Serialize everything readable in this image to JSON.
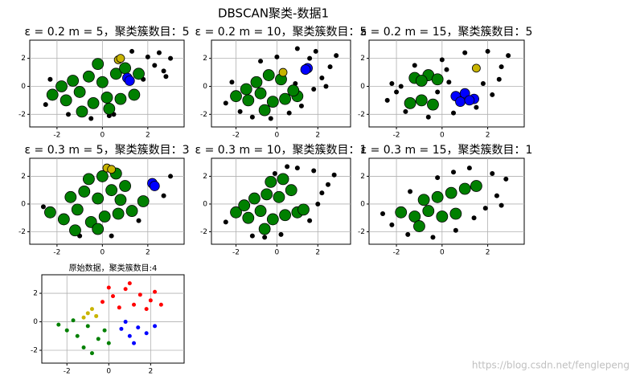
{
  "title": "DBSCAN聚类-数据1",
  "watermark": "https://blog.csdn.net/fenglepeng",
  "chart_data": [
    {
      "type": "scatter",
      "title": "ε = 0.2  m = 5，聚类簇数目：5",
      "xlim": [
        -3.2,
        3.6
      ],
      "ylim": [
        -2.9,
        3.3
      ],
      "xticks": [
        -2,
        0,
        2
      ],
      "yticks": [
        -2,
        0,
        2
      ],
      "grid": true,
      "series": [
        {
          "color": "#000000",
          "marker_size": 3,
          "x": [
            -2.5,
            -1.5,
            -0.5,
            0.3,
            1.8,
            2.3,
            2.7,
            3.0,
            2.5,
            2.0,
            1.3,
            -2.3,
            0.5,
            2.8
          ],
          "y": [
            -1.3,
            -2.0,
            -2.3,
            -2.1,
            0.5,
            1.5,
            1.1,
            2.0,
            2.4,
            2.1,
            2.5,
            0.5,
            -2.0,
            0.7
          ]
        },
        {
          "color": "#008000",
          "marker_size": 7,
          "x": [
            -2.2,
            -1.6,
            -1.0,
            -0.4,
            0.2,
            0.8,
            1.4,
            -1.3,
            -0.6,
            0.0,
            0.6,
            -1.8,
            -0.9,
            0.3,
            1.0,
            1.6,
            -0.2
          ],
          "y": [
            -0.6,
            -1.0,
            -0.4,
            -1.2,
            -0.8,
            -0.9,
            -0.6,
            0.4,
            0.7,
            0.3,
            0.9,
            0.0,
            -1.8,
            -1.6,
            1.3,
            0.9,
            1.6
          ]
        },
        {
          "color": "#0000ff",
          "marker_size": 6,
          "x": [
            1.1,
            1.2
          ],
          "y": [
            0.6,
            0.4
          ]
        },
        {
          "color": "#c8b400",
          "marker_size": 5,
          "x": [
            0.7,
            0.8
          ],
          "y": [
            1.9,
            2.0
          ]
        }
      ]
    },
    {
      "type": "scatter",
      "title": "ε = 0.2  m = 10，聚类簇数目：5",
      "xlim": [
        -3.2,
        3.6
      ],
      "ylim": [
        -2.9,
        3.3
      ],
      "xticks": [
        -2,
        0,
        2
      ],
      "yticks": [
        -2,
        0,
        2
      ],
      "grid": true,
      "series": [
        {
          "color": "#000000",
          "marker_size": 3,
          "x": [
            -2.5,
            -2.2,
            -1.8,
            -1.2,
            -0.3,
            0.6,
            1.2,
            1.8,
            2.2,
            2.6,
            2.9,
            1.9,
            1.0,
            0.0,
            -0.8,
            2.4,
            0.9,
            1.6
          ],
          "y": [
            -1.2,
            0.3,
            -1.8,
            -2.2,
            -2.3,
            -1.9,
            -1.4,
            -0.2,
            0.6,
            1.4,
            2.2,
            2.5,
            2.7,
            2.1,
            1.8,
            0.0,
            0.2,
            2.0
          ]
        },
        {
          "color": "#008000",
          "marker_size": 7,
          "x": [
            -2.0,
            -1.4,
            -0.8,
            -0.2,
            0.4,
            1.0,
            -1.0,
            -0.4,
            0.2,
            -1.5,
            0.8,
            -0.6
          ],
          "y": [
            -0.7,
            -1.0,
            -0.5,
            -1.1,
            -0.9,
            -0.7,
            0.3,
            0.8,
            0.5,
            -0.2,
            -0.3,
            -1.7
          ]
        },
        {
          "color": "#0000ff",
          "marker_size": 6,
          "x": [
            1.5,
            1.4
          ],
          "y": [
            1.3,
            1.2
          ]
        },
        {
          "color": "#c8b400",
          "marker_size": 5,
          "x": [
            0.3
          ],
          "y": [
            1.0
          ]
        }
      ]
    },
    {
      "type": "scatter",
      "title": "ε = 0.2  m = 15，聚类簇数目：5",
      "xlim": [
        -3.2,
        3.6
      ],
      "ylim": [
        -2.9,
        3.3
      ],
      "xticks": [
        -2,
        0,
        2
      ],
      "yticks": [
        -2,
        0,
        2
      ],
      "grid": true,
      "series": [
        {
          "color": "#000000",
          "marker_size": 3,
          "x": [
            -2.4,
            -2.0,
            -1.6,
            -2.2,
            -0.2,
            0.3,
            1.8,
            2.2,
            2.6,
            2.9,
            2.0,
            1.0,
            0.0,
            -1.2,
            -0.6,
            0.5,
            1.5,
            2.5,
            -1.8,
            0.2
          ],
          "y": [
            -1.0,
            -0.4,
            -1.8,
            0.2,
            -0.4,
            0.3,
            0.2,
            -0.6,
            1.4,
            2.2,
            2.5,
            2.4,
            1.9,
            1.5,
            -2.2,
            -1.9,
            -1.5,
            0.5,
            0.0,
            1.2
          ]
        },
        {
          "color": "#008000",
          "marker_size": 7,
          "x": [
            -1.2,
            -0.6,
            -0.2,
            -0.9,
            -1.4,
            -0.9,
            -0.4
          ],
          "y": [
            0.6,
            0.8,
            0.5,
            0.4,
            -1.2,
            -1.0,
            -1.3
          ]
        },
        {
          "color": "#0000ff",
          "marker_size": 6,
          "x": [
            0.6,
            1.0,
            1.4,
            0.8,
            1.2
          ],
          "y": [
            -0.7,
            -0.5,
            -0.9,
            -1.1,
            -1.0
          ]
        },
        {
          "color": "#c8b400",
          "marker_size": 5,
          "x": [
            1.5
          ],
          "y": [
            1.3
          ]
        }
      ]
    },
    {
      "type": "scatter",
      "title": "ε = 0.3  m = 5，聚类簇数目：3",
      "xlim": [
        -3.2,
        3.6
      ],
      "ylim": [
        -2.9,
        3.3
      ],
      "xticks": [
        -2,
        0,
        2
      ],
      "yticks": [
        -2,
        0,
        2
      ],
      "grid": true,
      "series": [
        {
          "color": "#000000",
          "marker_size": 3,
          "x": [
            -1.0,
            0.4,
            1.6,
            2.7,
            3.0,
            -2.6
          ],
          "y": [
            -2.3,
            -2.3,
            -1.2,
            0.6,
            2.0,
            -0.2
          ]
        },
        {
          "color": "#008000",
          "marker_size": 7,
          "x": [
            -2.3,
            -1.7,
            -1.1,
            -0.5,
            0.1,
            0.7,
            1.3,
            1.8,
            -1.4,
            -0.8,
            -0.2,
            0.4,
            1.0,
            -0.6,
            0.0,
            0.6,
            -1.2,
            -0.2,
            0.8
          ],
          "y": [
            -0.6,
            -1.1,
            -0.4,
            -1.3,
            -0.9,
            -0.7,
            -0.5,
            0.2,
            0.5,
            0.9,
            0.4,
            1.0,
            1.3,
            1.8,
            2.0,
            2.2,
            -1.9,
            -1.8,
            0.3
          ]
        },
        {
          "color": "#0000ff",
          "marker_size": 6,
          "x": [
            2.2,
            2.3
          ],
          "y": [
            1.5,
            1.3
          ]
        },
        {
          "color": "#c8b400",
          "marker_size": 5,
          "x": [
            0.2,
            0.4
          ],
          "y": [
            2.6,
            2.5
          ]
        }
      ]
    },
    {
      "type": "scatter",
      "title": "ε = 0.3  m = 10，聚类簇数目：1",
      "xlim": [
        -3.2,
        3.6
      ],
      "ylim": [
        -2.9,
        3.3
      ],
      "xticks": [
        -2,
        0,
        2
      ],
      "yticks": [
        -2,
        0,
        2
      ],
      "grid": true,
      "series": [
        {
          "color": "#000000",
          "marker_size": 3,
          "x": [
            -2.5,
            -1.2,
            0.2,
            1.6,
            2.0,
            2.5,
            2.8,
            1.8,
            1.0,
            0.5,
            -0.1,
            -0.6,
            2.2
          ],
          "y": [
            -1.3,
            -2.3,
            -2.2,
            -1.2,
            0.0,
            1.4,
            2.1,
            2.4,
            2.6,
            2.7,
            2.2,
            -2.4,
            0.8
          ]
        },
        {
          "color": "#008000",
          "marker_size": 7,
          "x": [
            -2.0,
            -1.4,
            -0.8,
            -0.2,
            0.4,
            1.0,
            -1.1,
            -0.5,
            0.1,
            0.7,
            -0.3,
            0.3,
            1.3,
            -1.6,
            -0.6
          ],
          "y": [
            -0.6,
            -1.0,
            -0.5,
            -1.1,
            -0.8,
            -0.6,
            0.4,
            0.7,
            0.5,
            1.0,
            1.6,
            1.8,
            -0.4,
            -0.1,
            -1.8
          ]
        }
      ]
    },
    {
      "type": "scatter",
      "title": "ε = 0.3  m = 15，聚类簇数目：1",
      "xlim": [
        -3.2,
        3.6
      ],
      "ylim": [
        -2.9,
        3.3
      ],
      "xticks": [
        -2,
        0,
        2
      ],
      "yticks": [
        -2,
        0,
        2
      ],
      "grid": true,
      "series": [
        {
          "color": "#000000",
          "marker_size": 3,
          "x": [
            -2.6,
            -2.2,
            -1.5,
            -0.4,
            0.6,
            1.4,
            1.9,
            2.4,
            2.8,
            2.2,
            1.2,
            0.5,
            -0.2,
            -1.4,
            2.6
          ],
          "y": [
            -0.7,
            -1.5,
            -2.2,
            -2.4,
            -1.9,
            -1.0,
            -0.3,
            0.6,
            1.8,
            2.2,
            2.6,
            2.3,
            1.9,
            0.9,
            -0.1
          ]
        },
        {
          "color": "#008000",
          "marker_size": 7,
          "x": [
            -1.8,
            -1.2,
            -0.6,
            0.0,
            0.6,
            -0.8,
            -0.2,
            0.4,
            1.0,
            1.5,
            -1.0
          ],
          "y": [
            -0.6,
            -0.9,
            -0.5,
            -0.9,
            -0.7,
            0.3,
            0.5,
            0.8,
            1.1,
            1.3,
            -1.6
          ]
        }
      ]
    },
    {
      "type": "scatter",
      "title": "原始数据，聚类簇数目:4",
      "xlim": [
        -3.2,
        3.6
      ],
      "ylim": [
        -2.9,
        3.3
      ],
      "xticks": [
        -2,
        0,
        2
      ],
      "yticks": [
        -2,
        0,
        2
      ],
      "grid": true,
      "series": [
        {
          "color": "#ff0000",
          "marker_size": 2.5,
          "x": [
            0.2,
            0.8,
            1.5,
            2.0,
            1.2,
            0.5,
            -0.3,
            1.8,
            2.5,
            1.0,
            0.0,
            2.2
          ],
          "y": [
            1.8,
            2.3,
            1.9,
            1.5,
            1.2,
            1.0,
            1.4,
            0.9,
            1.2,
            2.7,
            2.4,
            2.1
          ]
        },
        {
          "color": "#c8b400",
          "marker_size": 2.5,
          "x": [
            -1.0,
            -0.6,
            -0.8,
            -1.2
          ],
          "y": [
            0.6,
            0.4,
            0.9,
            0.3
          ]
        },
        {
          "color": "#008000",
          "marker_size": 2.5,
          "x": [
            -2.0,
            -1.5,
            -1.0,
            -0.5,
            -1.2,
            -0.2,
            -2.4,
            -0.8,
            0.0,
            -1.7
          ],
          "y": [
            -0.6,
            -1.0,
            -0.3,
            -1.2,
            -1.8,
            -0.6,
            -0.2,
            -2.2,
            -1.5,
            0.1
          ]
        },
        {
          "color": "#0000ff",
          "marker_size": 2.5,
          "x": [
            0.6,
            1.0,
            1.4,
            0.8,
            1.8,
            1.2,
            2.2
          ],
          "y": [
            -0.5,
            -1.0,
            -0.4,
            0.0,
            -0.8,
            -1.5,
            -0.3
          ]
        }
      ]
    }
  ]
}
